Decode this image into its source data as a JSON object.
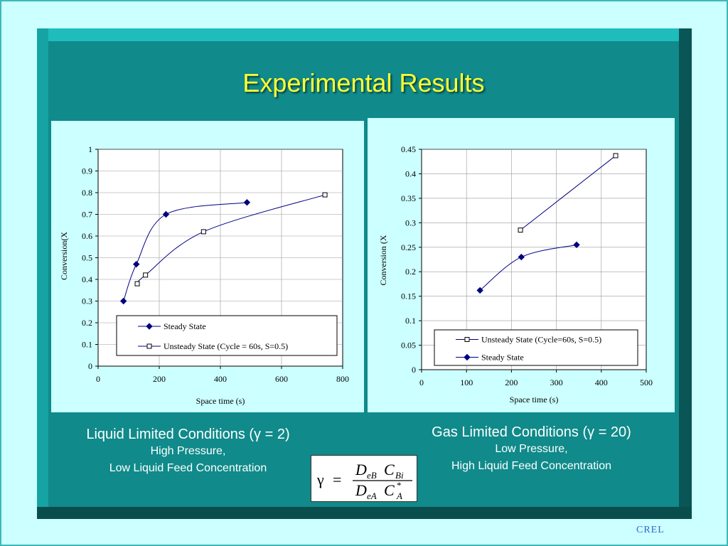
{
  "slide": {
    "title": "Experimental Results",
    "footer": "CREL"
  },
  "left_caption": {
    "line1": "Liquid Limited Conditions (γ = 2)",
    "line2": "High Pressure,",
    "line3": "Low Liquid Feed Concentration"
  },
  "right_caption": {
    "line1": "Gas Limited Conditions (γ = 20)",
    "line2": "Low Pressure,",
    "line3": "High Liquid Feed Concentration"
  },
  "formula": {
    "lhs": "γ",
    "eq": "=",
    "num_D": "D",
    "num_D_sub": "eB",
    "num_C": "C",
    "num_C_sub": "Bi",
    "den_D": "D",
    "den_D_sub": "eA",
    "den_C": "C",
    "den_C_sup": "*",
    "den_C_sub": "A"
  },
  "colors": {
    "background": "#ccffff",
    "frame": "#108a8a",
    "title": "#ffff33",
    "series_line": "#000080"
  },
  "chart_data": [
    {
      "type": "line",
      "xlabel": "Space time (s)",
      "ylabel": "Conversion(X",
      "xlim": [
        0,
        800
      ],
      "ylim": [
        0,
        1
      ],
      "xticks": [
        0,
        200,
        400,
        600,
        800
      ],
      "yticks": [
        0,
        0.1,
        0.2,
        0.3,
        0.4,
        0.5,
        0.6,
        0.7,
        0.8,
        0.9,
        1
      ],
      "grid": true,
      "legend": "bottom-right",
      "series": [
        {
          "name": "Steady State",
          "marker": "diamond",
          "x": [
            83,
            125,
            222,
            487
          ],
          "y": [
            0.3,
            0.47,
            0.7,
            0.755
          ]
        },
        {
          "name": "Unsteady State (Cycle = 60s, S=0.5)",
          "marker": "square",
          "x": [
            128,
            155,
            345,
            742
          ],
          "y": [
            0.38,
            0.42,
            0.62,
            0.79
          ]
        }
      ]
    },
    {
      "type": "line",
      "xlabel": "Space time (s)",
      "ylabel": "Conversion (X",
      "xlim": [
        0,
        500
      ],
      "ylim": [
        0,
        0.45
      ],
      "xticks": [
        0,
        100,
        200,
        300,
        400,
        500
      ],
      "yticks": [
        0,
        0.05,
        0.1,
        0.15,
        0.2,
        0.25,
        0.3,
        0.35,
        0.4,
        0.45
      ],
      "grid": true,
      "legend": "bottom-right",
      "series": [
        {
          "name": "Unsteady State (Cycle=60s, S=0.5)",
          "marker": "square",
          "x": [
            220,
            432
          ],
          "y": [
            0.285,
            0.437
          ]
        },
        {
          "name": "Steady State",
          "marker": "diamond",
          "x": [
            130,
            222,
            345
          ],
          "y": [
            0.162,
            0.23,
            0.255
          ]
        }
      ]
    }
  ]
}
